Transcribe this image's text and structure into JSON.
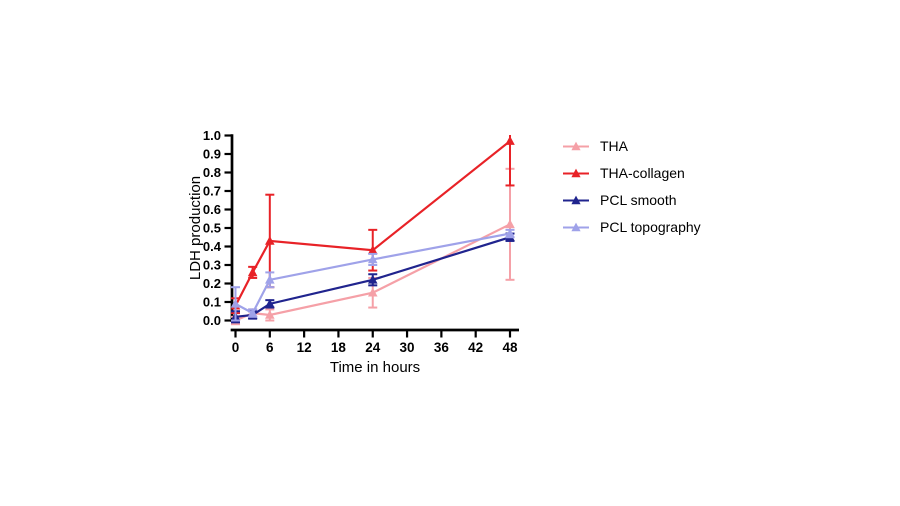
{
  "chart_data": {
    "type": "line",
    "title": "",
    "xlabel": "Time in hours",
    "ylabel": "LDH production",
    "xlim": [
      0,
      48
    ],
    "ylim": [
      0.0,
      1.0
    ],
    "xticks": [
      "0",
      "6",
      "12",
      "18",
      "24",
      "30",
      "36",
      "42",
      "48"
    ],
    "yticks": [
      "0.0",
      "0.1",
      "0.2",
      "0.3",
      "0.4",
      "0.5",
      "0.6",
      "0.7",
      "0.8",
      "0.9",
      "1.0"
    ],
    "grid": false,
    "legend_position": "right",
    "marker": "filled-triangle-up",
    "error_bars": true,
    "x": [
      0,
      3,
      6,
      24,
      48
    ],
    "series": [
      {
        "name": "THA",
        "color": "#f5a0a7",
        "values": [
          0.0,
          0.04,
          0.03,
          0.15,
          0.52
        ],
        "errors": [
          0.02,
          0.02,
          0.03,
          0.08,
          0.3
        ]
      },
      {
        "name": "THA-collagen",
        "color": "#e82227",
        "values": [
          0.08,
          0.26,
          0.43,
          0.38,
          0.97
        ],
        "errors": [
          0.04,
          0.03,
          0.25,
          0.11,
          0.24
        ]
      },
      {
        "name": "PCL smooth",
        "color": "#20248e",
        "values": [
          0.02,
          0.03,
          0.09,
          0.22,
          0.45
        ],
        "errors": [
          0.03,
          0.02,
          0.02,
          0.03,
          0.02
        ]
      },
      {
        "name": "PCL topography",
        "color": "#9fa2e9",
        "values": [
          0.09,
          0.04,
          0.22,
          0.33,
          0.47
        ],
        "errors": [
          0.09,
          0.02,
          0.04,
          0.03,
          0.02
        ]
      }
    ],
    "axis_color": "#000000",
    "background_color": "#ffffff"
  }
}
